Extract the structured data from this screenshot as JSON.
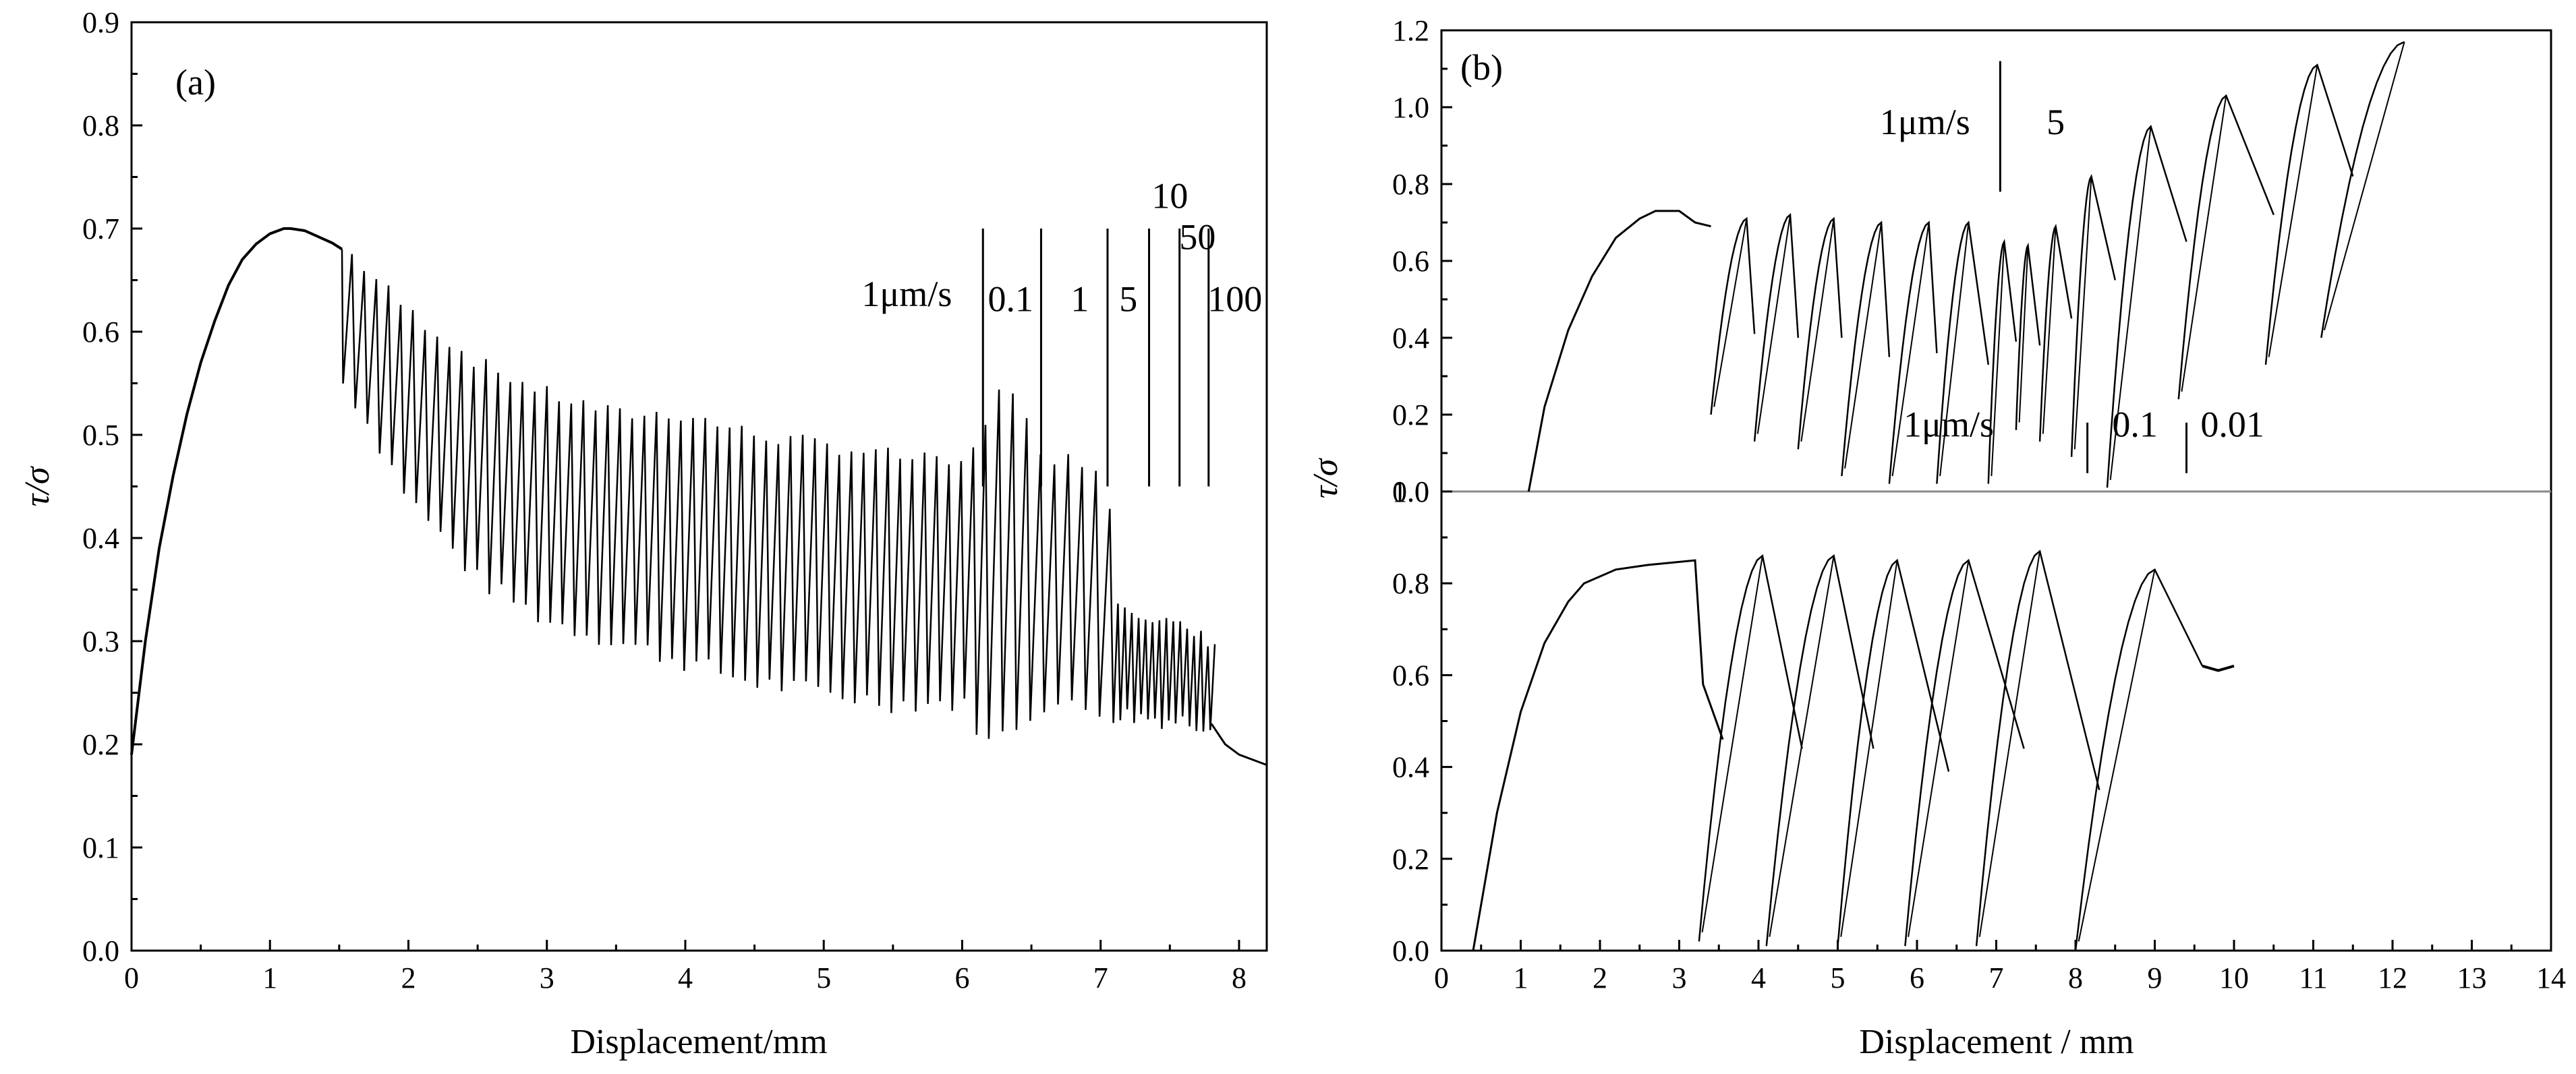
{
  "chart_data": [
    {
      "type": "line",
      "panel_label": "(a)",
      "xlabel": "Displacement/mm",
      "ylabel": "τ/σ",
      "xlim": [
        0,
        8.2
      ],
      "ylim": [
        0,
        0.9
      ],
      "xticks": [
        0,
        1,
        2,
        3,
        4,
        5,
        6,
        7,
        8
      ],
      "yticks": [
        0.0,
        0.1,
        0.2,
        0.3,
        0.4,
        0.5,
        0.6,
        0.7,
        0.8,
        0.9
      ],
      "xtick_labels": [
        "0",
        "1",
        "2",
        "3",
        "4",
        "5",
        "6",
        "7",
        "8"
      ],
      "ytick_labels": [
        "0.0",
        "0.1",
        "0.2",
        "0.3",
        "0.4",
        "0.5",
        "0.6",
        "0.7",
        "0.8",
        "0.9"
      ],
      "grid": false,
      "series": [
        {
          "x": [
            0,
            0.1,
            0.2,
            0.3,
            0.4,
            0.5,
            0.6,
            0.7,
            0.8,
            0.9,
            1.0,
            1.1,
            1.15,
            1.25,
            1.35,
            1.45,
            1.52
          ],
          "values": [
            0.19,
            0.3,
            0.39,
            0.46,
            0.52,
            0.57,
            0.61,
            0.645,
            0.67,
            0.685,
            0.695,
            0.7,
            0.7,
            0.698,
            0.692,
            0.686,
            0.68
          ],
          "stick_slip": {
            "x_start": 1.52,
            "x_end": 7.8,
            "peak_envelope": [
              [
                1.55,
                0.68
              ],
              [
                2.0,
                0.62
              ],
              [
                2.5,
                0.57
              ],
              [
                3.0,
                0.54
              ],
              [
                3.5,
                0.52
              ],
              [
                4.0,
                0.52
              ],
              [
                4.5,
                0.5
              ],
              [
                5.0,
                0.49
              ],
              [
                5.5,
                0.48
              ],
              [
                6.0,
                0.47
              ],
              [
                6.3,
                0.55
              ],
              [
                6.6,
                0.48
              ],
              [
                7.05,
                0.47
              ],
              [
                7.1,
                0.34
              ],
              [
                7.8,
                0.3
              ]
            ],
            "trough_envelope": [
              [
                1.55,
                0.55
              ],
              [
                2.0,
                0.44
              ],
              [
                2.5,
                0.36
              ],
              [
                3.0,
                0.32
              ],
              [
                3.5,
                0.3
              ],
              [
                4.0,
                0.28
              ],
              [
                4.5,
                0.26
              ],
              [
                5.0,
                0.25
              ],
              [
                5.5,
                0.24
              ],
              [
                6.0,
                0.24
              ],
              [
                6.2,
                0.2
              ],
              [
                6.6,
                0.24
              ],
              [
                7.05,
                0.23
              ],
              [
                7.8,
                0.22
              ]
            ]
          },
          "tail": [
            [
              7.8,
              0.22
            ],
            [
              7.9,
              0.2
            ],
            [
              8.0,
              0.19
            ],
            [
              8.2,
              0.18
            ]
          ]
        }
      ],
      "annotations": [
        {
          "text": "1μm/s",
          "x": 5.6,
          "y": 0.625
        },
        {
          "text": "0.1",
          "x": 6.35,
          "y": 0.62
        },
        {
          "text": "1",
          "x": 6.85,
          "y": 0.62
        },
        {
          "text": "5",
          "x": 7.2,
          "y": 0.62
        },
        {
          "text": "10",
          "x": 7.5,
          "y": 0.72
        },
        {
          "text": "50",
          "x": 7.7,
          "y": 0.68
        },
        {
          "text": "100",
          "x": 7.97,
          "y": 0.62
        }
      ],
      "rate_change_lines_x": [
        6.15,
        6.57,
        7.05,
        7.35,
        7.57,
        7.78
      ]
    },
    {
      "type": "line",
      "panel_label": "(b)",
      "xlabel": "Displacement / mm",
      "ylabel": "τ/σ",
      "xlim": [
        0,
        14
      ],
      "xticks": [
        0,
        1,
        2,
        3,
        4,
        5,
        6,
        7,
        8,
        9,
        10,
        11,
        12,
        13,
        14
      ],
      "xtick_labels": [
        "0",
        "1",
        "2",
        "3",
        "4",
        "5",
        "6",
        "7",
        "8",
        "9",
        "10",
        "11",
        "12",
        "13",
        "14"
      ],
      "grid": false,
      "subpanels": [
        {
          "position": "top",
          "ylim": [
            0,
            1.2
          ],
          "yticks": [
            0.0,
            0.2,
            0.4,
            0.6,
            0.8,
            1.0,
            1.2
          ],
          "ytick_labels": [
            "0.0",
            "0.2",
            "0.4",
            "0.6",
            "0.8",
            "1.0",
            "1.2"
          ],
          "initial_curve": [
            [
              1.1,
              0.0
            ],
            [
              1.3,
              0.22
            ],
            [
              1.6,
              0.42
            ],
            [
              1.9,
              0.56
            ],
            [
              2.2,
              0.66
            ],
            [
              2.5,
              0.71
            ],
            [
              2.7,
              0.73
            ],
            [
              3.0,
              0.73
            ],
            [
              3.2,
              0.7
            ],
            [
              3.4,
              0.69
            ]
          ],
          "cycles": [
            {
              "start": [
                3.4,
                0.2
              ],
              "peak": [
                3.85,
                0.71
              ],
              "drop": [
                3.95,
                0.41
              ]
            },
            {
              "start": [
                3.95,
                0.13
              ],
              "peak": [
                4.4,
                0.72
              ],
              "drop": [
                4.5,
                0.4
              ]
            },
            {
              "start": [
                4.5,
                0.11
              ],
              "peak": [
                4.95,
                0.71
              ],
              "drop": [
                5.05,
                0.4
              ]
            },
            {
              "start": [
                5.05,
                0.04
              ],
              "peak": [
                5.55,
                0.7
              ],
              "drop": [
                5.65,
                0.35
              ]
            },
            {
              "start": [
                5.65,
                0.02
              ],
              "peak": [
                6.15,
                0.7
              ],
              "drop": [
                6.25,
                0.36
              ]
            },
            {
              "start": [
                6.25,
                0.02
              ],
              "peak": [
                6.65,
                0.7
              ],
              "drop": [
                6.9,
                0.33
              ]
            },
            {
              "start": [
                6.9,
                0.02
              ],
              "peak": [
                7.1,
                0.65
              ],
              "drop": [
                7.25,
                0.39
              ]
            },
            {
              "start": [
                7.25,
                0.16
              ],
              "peak": [
                7.4,
                0.64
              ],
              "drop": [
                7.55,
                0.38
              ]
            },
            {
              "start": [
                7.55,
                0.13
              ],
              "peak": [
                7.75,
                0.69
              ],
              "drop": [
                7.95,
                0.45
              ]
            },
            {
              "start": [
                7.95,
                0.09
              ],
              "peak": [
                8.2,
                0.82
              ],
              "drop": [
                8.5,
                0.55
              ]
            },
            {
              "start": [
                8.4,
                0.01
              ],
              "peak": [
                8.95,
                0.95
              ],
              "drop": [
                9.4,
                0.65
              ]
            },
            {
              "start": [
                9.3,
                0.24
              ],
              "peak": [
                9.9,
                1.03
              ],
              "drop": [
                10.5,
                0.72
              ]
            },
            {
              "start": [
                10.4,
                0.33
              ],
              "peak": [
                11.05,
                1.11
              ],
              "drop": [
                11.5,
                0.82
              ]
            },
            {
              "start": [
                11.1,
                0.4
              ],
              "peak": [
                12.15,
                1.17
              ]
            }
          ],
          "annotations": [
            {
              "text": "1μm/s",
              "x": 6.1,
              "y": 0.93
            },
            {
              "text": "5",
              "x": 7.75,
              "y": 0.93
            }
          ],
          "rate_change_lines_x": [
            7.05
          ]
        },
        {
          "position": "bottom",
          "ylim": [
            0,
            1.0
          ],
          "yticks": [
            0.0,
            0.2,
            0.4,
            0.6,
            0.8,
            1.0
          ],
          "ytick_labels": [
            "0.0",
            "0.2",
            "0.4",
            "0.6",
            "0.8",
            "1.0"
          ],
          "initial_curve": [
            [
              0.4,
              0.0
            ],
            [
              0.7,
              0.3
            ],
            [
              1.0,
              0.52
            ],
            [
              1.3,
              0.67
            ],
            [
              1.6,
              0.76
            ],
            [
              1.8,
              0.8
            ],
            [
              2.2,
              0.83
            ],
            [
              2.6,
              0.84
            ],
            [
              3.2,
              0.85
            ],
            [
              3.3,
              0.58
            ],
            [
              3.55,
              0.46
            ]
          ],
          "cycles": [
            {
              "start": [
                3.25,
                0.02
              ],
              "peak": [
                4.05,
                0.86
              ],
              "drop": [
                4.55,
                0.44
              ]
            },
            {
              "start": [
                4.1,
                0.01
              ],
              "peak": [
                4.95,
                0.86
              ],
              "drop": [
                5.45,
                0.44
              ]
            },
            {
              "start": [
                5.0,
                0.01
              ],
              "peak": [
                5.75,
                0.85
              ],
              "drop": [
                6.4,
                0.39
              ]
            },
            {
              "start": [
                5.85,
                0.01
              ],
              "peak": [
                6.65,
                0.85
              ],
              "drop": [
                7.35,
                0.44
              ]
            },
            {
              "start": [
                6.75,
                0.01
              ],
              "peak": [
                7.55,
                0.87
              ],
              "drop": [
                8.3,
                0.35
              ]
            },
            {
              "start": [
                8.0,
                0.0
              ],
              "peak": [
                9.0,
                0.83
              ],
              "drop": [
                9.6,
                0.62
              ]
            }
          ],
          "final_curve": [
            [
              9.6,
              0.62
            ],
            [
              9.8,
              0.61
            ],
            [
              10.0,
              0.62
            ]
          ],
          "annotations": [
            {
              "text": "1μm/s",
              "x": 6.4,
              "y": 1.12
            },
            {
              "text": "0.1",
              "x": 8.75,
              "y": 1.12
            },
            {
              "text": "0.01",
              "x": 9.98,
              "y": 1.12
            }
          ],
          "rate_change_lines_x": [
            8.15,
            9.4
          ]
        }
      ]
    }
  ]
}
